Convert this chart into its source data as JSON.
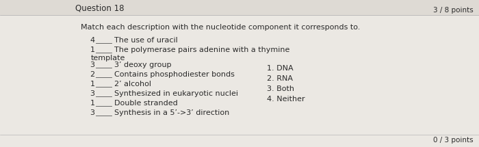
{
  "title": "Question 18",
  "points": "3 / 8 points",
  "instruction": "Match each description with the nucleotide component it corresponds to.",
  "items": [
    {
      "answer": "4",
      "text": "The use of uracil",
      "extra_line": null
    },
    {
      "answer": "1",
      "text": "The polymerase pairs adenine with a thymine",
      "extra_line": "template"
    },
    {
      "answer": "3",
      "text": "3’ deoxy group",
      "extra_line": null
    },
    {
      "answer": "2",
      "text": "Contains phosphodiester bonds",
      "extra_line": null
    },
    {
      "answer": "1",
      "text": "2’ alcohol",
      "extra_line": null
    },
    {
      "answer": "3",
      "text": "Synthesized in eukaryotic nuclei",
      "extra_line": null
    },
    {
      "answer": "1",
      "text": "Double stranded",
      "extra_line": null
    },
    {
      "answer": "3",
      "text": "Synthesis in a 5’->3’ direction",
      "extra_line": null
    }
  ],
  "legend": [
    "1. DNA",
    "2. RNA",
    "3. Both",
    "4. Neither"
  ],
  "bg_color": "#ebe8e3",
  "header_bg_color": "#dedad4",
  "text_color": "#2a2a2a",
  "line_color": "#555555",
  "bottom_points": "0 / 3 points",
  "fig_width": 7.0,
  "fig_height": 2.15,
  "dpi": 100
}
